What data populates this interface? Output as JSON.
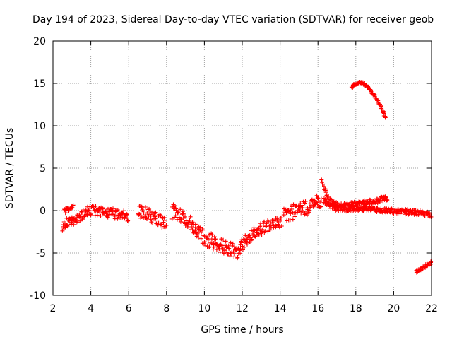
{
  "chart_data": {
    "type": "scatter",
    "title": "Day 194 of 2023, Sidereal Day-to-day VTEC variation (SDTVAR) for receiver geob",
    "xlabel": "GPS time / hours",
    "ylabel": "SDTVAR / TECUs",
    "xlim": [
      2,
      22
    ],
    "ylim": [
      -10,
      20
    ],
    "xticks": [
      2,
      4,
      6,
      8,
      10,
      12,
      14,
      16,
      18,
      20,
      22
    ],
    "yticks": [
      -10,
      -5,
      0,
      5,
      10,
      15,
      20
    ],
    "grid": true,
    "series": [
      {
        "name": "SDTVAR",
        "color": "#ff0000",
        "marker": "plus",
        "segments": [
          {
            "x": [
              2.5,
              2.8,
              3.1,
              3.4,
              3.7,
              4.0,
              4.3,
              4.6,
              5.0,
              5.4,
              5.8,
              6.0
            ],
            "y": [
              -1.8,
              -1.4,
              -1.2,
              -0.8,
              -0.3,
              0.0,
              0.0,
              -0.2,
              -0.3,
              -0.4,
              -0.6,
              -0.7
            ],
            "band": 1.2
          },
          {
            "x": [
              2.6,
              2.9,
              3.1
            ],
            "y": [
              -0.1,
              0.3,
              0.5
            ],
            "band": 0.5
          },
          {
            "x": [
              6.5,
              6.8,
              7.1,
              7.4,
              7.7,
              8.0
            ],
            "y": [
              -0.2,
              -0.3,
              -0.6,
              -0.9,
              -1.2,
              -1.4
            ],
            "band": 1.6
          },
          {
            "x": [
              8.3,
              8.7,
              9.0,
              9.3,
              9.6,
              10.0,
              10.4,
              10.8,
              11.2,
              11.6,
              11.8
            ],
            "y": [
              -0.1,
              -0.6,
              -1.0,
              -1.6,
              -2.5,
              -3.2,
              -3.6,
              -4.0,
              -4.3,
              -4.8,
              -5.0
            ],
            "band": 1.8
          },
          {
            "x": [
              11.8,
              12.1,
              12.4,
              12.7,
              13.0,
              13.4,
              13.8,
              14.1
            ],
            "y": [
              -4.8,
              -3.8,
              -3.2,
              -2.6,
              -2.2,
              -1.8,
              -1.4,
              -1.2
            ],
            "band": 1.5
          },
          {
            "x": [
              14.2,
              14.6,
              15.0,
              15.4,
              15.8,
              16.2
            ],
            "y": [
              -0.6,
              -0.2,
              0.0,
              0.3,
              0.8,
              1.2
            ],
            "band": 1.8
          },
          {
            "x": [
              16.2,
              16.5,
              16.8,
              17.2,
              17.7,
              18.2,
              18.8,
              19.3,
              19.7
            ],
            "y": [
              3.5,
              1.6,
              0.8,
              0.6,
              0.7,
              0.8,
              1.0,
              1.3,
              1.5
            ],
            "band": 0.6
          },
          {
            "x": [
              16.3,
              16.8,
              17.4,
              18.0,
              18.6,
              19.2,
              19.8,
              20.4,
              21.0,
              21.6,
              22.0
            ],
            "y": [
              1.2,
              0.3,
              0.2,
              0.2,
              0.2,
              0.1,
              0.0,
              -0.1,
              -0.2,
              -0.3,
              -0.6
            ],
            "band": 0.6
          },
          {
            "x": [
              17.8,
              18.1,
              18.4,
              18.7,
              19.0,
              19.3,
              19.6
            ],
            "y": [
              14.6,
              15.1,
              15.0,
              14.4,
              13.5,
              12.4,
              10.8
            ],
            "band": 0.3
          },
          {
            "x": [
              21.2,
              21.5,
              21.8,
              22.0
            ],
            "y": [
              -7.2,
              -6.8,
              -6.4,
              -6.1
            ],
            "band": 0.4
          }
        ]
      }
    ]
  }
}
